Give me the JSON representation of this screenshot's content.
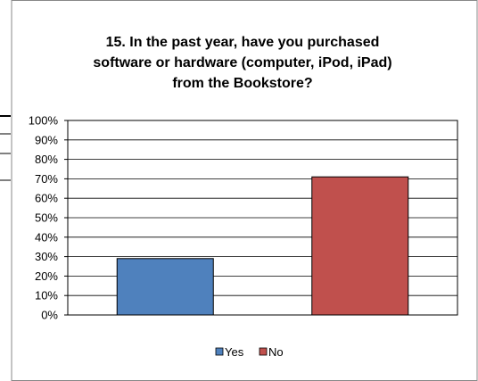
{
  "chart_data": {
    "type": "bar",
    "title_lines": [
      "15. In the past year, have you purchased",
      "software or hardware (computer, iPod, iPad)",
      "from the Bookstore?"
    ],
    "categories": [
      "Yes",
      "No"
    ],
    "values": [
      29,
      71
    ],
    "colors": [
      "#4F81BD",
      "#C0504D"
    ],
    "ylim": [
      0,
      100
    ],
    "y_ticks": [
      "0%",
      "10%",
      "20%",
      "30%",
      "40%",
      "50%",
      "60%",
      "70%",
      "80%",
      "90%",
      "100%"
    ],
    "grid": true,
    "legend": {
      "position": "bottom",
      "entries": [
        "Yes",
        "No"
      ]
    }
  }
}
